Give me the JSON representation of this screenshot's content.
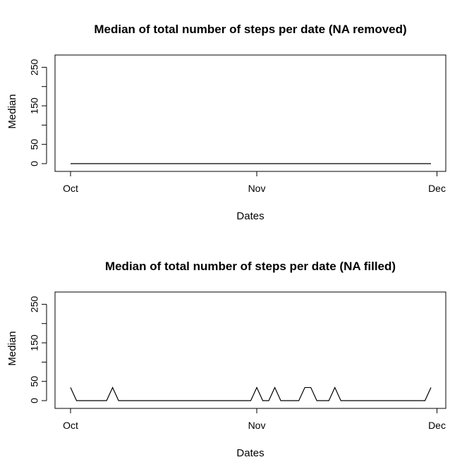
{
  "chart_data": [
    {
      "type": "line",
      "title": "Median of total number of steps per date (NA removed)",
      "xlabel": "Dates",
      "ylabel": "Median",
      "x_ticks": [
        "Oct",
        "Nov",
        "Dec"
      ],
      "y_ticks": [
        "0",
        "50",
        "150",
        "250"
      ],
      "ylim": [
        0,
        280
      ],
      "xlim": [
        "2012-10-01",
        "2012-12-01"
      ],
      "series": [
        {
          "x": [
            "2012-10-01",
            "2012-10-02",
            "2012-10-03",
            "2012-10-04",
            "2012-10-05",
            "2012-10-06",
            "2012-10-07",
            "2012-10-08",
            "2012-10-09",
            "2012-10-10",
            "2012-10-11",
            "2012-10-12",
            "2012-10-13",
            "2012-10-14",
            "2012-10-15",
            "2012-10-16",
            "2012-10-17",
            "2012-10-18",
            "2012-10-19",
            "2012-10-20",
            "2012-10-21",
            "2012-10-22",
            "2012-10-23",
            "2012-10-24",
            "2012-10-25",
            "2012-10-26",
            "2012-10-27",
            "2012-10-28",
            "2012-10-29",
            "2012-10-30",
            "2012-10-31",
            "2012-11-01",
            "2012-11-02",
            "2012-11-03",
            "2012-11-04",
            "2012-11-05",
            "2012-11-06",
            "2012-11-07",
            "2012-11-08",
            "2012-11-09",
            "2012-11-10",
            "2012-11-11",
            "2012-11-12",
            "2012-11-13",
            "2012-11-14",
            "2012-11-15",
            "2012-11-16",
            "2012-11-17",
            "2012-11-18",
            "2012-11-19",
            "2012-11-20",
            "2012-11-21",
            "2012-11-22",
            "2012-11-23",
            "2012-11-24",
            "2012-11-25",
            "2012-11-26",
            "2012-11-27",
            "2012-11-28",
            "2012-11-29",
            "2012-11-30"
          ],
          "values": [
            0,
            0,
            0,
            0,
            0,
            0,
            0,
            0,
            0,
            0,
            0,
            0,
            0,
            0,
            0,
            0,
            0,
            0,
            0,
            0,
            0,
            0,
            0,
            0,
            0,
            0,
            0,
            0,
            0,
            0,
            0,
            0,
            0,
            0,
            0,
            0,
            0,
            0,
            0,
            0,
            0,
            0,
            0,
            0,
            0,
            0,
            0,
            0,
            0,
            0,
            0,
            0,
            0,
            0,
            0,
            0,
            0,
            0,
            0,
            0,
            0
          ]
        }
      ]
    },
    {
      "type": "line",
      "title": "Median of total number of steps per date (NA filled)",
      "xlabel": "Dates",
      "ylabel": "Median",
      "x_ticks": [
        "Oct",
        "Nov",
        "Dec"
      ],
      "y_ticks": [
        "0",
        "50",
        "150",
        "250"
      ],
      "ylim": [
        0,
        280
      ],
      "xlim": [
        "2012-10-01",
        "2012-12-01"
      ],
      "series": [
        {
          "x": [
            "2012-10-01",
            "2012-10-02",
            "2012-10-03",
            "2012-10-04",
            "2012-10-05",
            "2012-10-06",
            "2012-10-07",
            "2012-10-08",
            "2012-10-09",
            "2012-10-10",
            "2012-10-11",
            "2012-10-12",
            "2012-10-13",
            "2012-10-14",
            "2012-10-15",
            "2012-10-16",
            "2012-10-17",
            "2012-10-18",
            "2012-10-19",
            "2012-10-20",
            "2012-10-21",
            "2012-10-22",
            "2012-10-23",
            "2012-10-24",
            "2012-10-25",
            "2012-10-26",
            "2012-10-27",
            "2012-10-28",
            "2012-10-29",
            "2012-10-30",
            "2012-10-31",
            "2012-11-01",
            "2012-11-02",
            "2012-11-03",
            "2012-11-04",
            "2012-11-05",
            "2012-11-06",
            "2012-11-07",
            "2012-11-08",
            "2012-11-09",
            "2012-11-10",
            "2012-11-11",
            "2012-11-12",
            "2012-11-13",
            "2012-11-14",
            "2012-11-15",
            "2012-11-16",
            "2012-11-17",
            "2012-11-18",
            "2012-11-19",
            "2012-11-20",
            "2012-11-21",
            "2012-11-22",
            "2012-11-23",
            "2012-11-24",
            "2012-11-25",
            "2012-11-26",
            "2012-11-27",
            "2012-11-28",
            "2012-11-29",
            "2012-11-30"
          ],
          "values": [
            34,
            0,
            0,
            0,
            0,
            0,
            0,
            34,
            0,
            0,
            0,
            0,
            0,
            0,
            0,
            0,
            0,
            0,
            0,
            0,
            0,
            0,
            0,
            0,
            0,
            0,
            0,
            0,
            0,
            0,
            0,
            34,
            0,
            0,
            34,
            0,
            0,
            0,
            0,
            34,
            34,
            0,
            0,
            0,
            34,
            0,
            0,
            0,
            0,
            0,
            0,
            0,
            0,
            0,
            0,
            0,
            0,
            0,
            0,
            0,
            34
          ]
        }
      ]
    }
  ]
}
